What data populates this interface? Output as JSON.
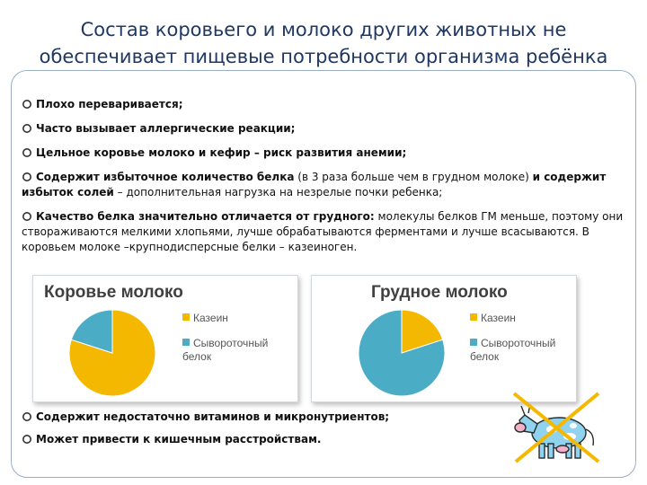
{
  "title": {
    "line1": "Состав коровьего и молоко других животных не",
    "line2": "обеспечивает пищевые потребности организма ребёнка"
  },
  "bullets": [
    {
      "lead": "Плохо переваривается;",
      "rest": ""
    },
    {
      "lead": "Часто вызывает аллергические реакции;",
      "rest": ""
    },
    {
      "lead": "Цельное коровье молоко и кефир – риск развития анемии;",
      "rest": ""
    },
    {
      "lead": "Содержит избыточное количество белка",
      "mid": " (в 3 раза больше чем в грудном молоке) ",
      "lead2": "и содержит избыток солей",
      "rest": " – дополнительная нагрузка на незрелые почки ребенка;"
    },
    {
      "lead": "Качество белка значительно отличается от грудного:",
      "rest": " молекулы белков ГМ меньше, поэтому они створаживаются мелкими хлопьями, лучше обрабатываются ферментами и лучше всасываются. В коровьем молоке –крупнодисперсные белки – казеиноген."
    }
  ],
  "bottom_bullets": [
    "Содержит недостаточно витаминов и микронутриентов;",
    "Может привести к кишечным расстройствам."
  ],
  "colors": {
    "casein": "#f5b800",
    "whey": "#4bacc6",
    "title": "#1f3864",
    "bullet_marker": "#333333"
  },
  "icons": {
    "cow_icon": "crossed-out-cow-icon",
    "bullet_marker": "circle-bullet-icon"
  },
  "chart_data": [
    {
      "type": "pie",
      "title": "Коровье молоко",
      "categories": [
        "Казеин",
        "Сывороточный белок"
      ],
      "values": [
        80,
        20
      ],
      "legend": "right"
    },
    {
      "type": "pie",
      "title": "Грудное молоко",
      "categories": [
        "Казеин",
        "Сывороточный белок"
      ],
      "values": [
        20,
        80
      ],
      "legend": "right"
    }
  ]
}
